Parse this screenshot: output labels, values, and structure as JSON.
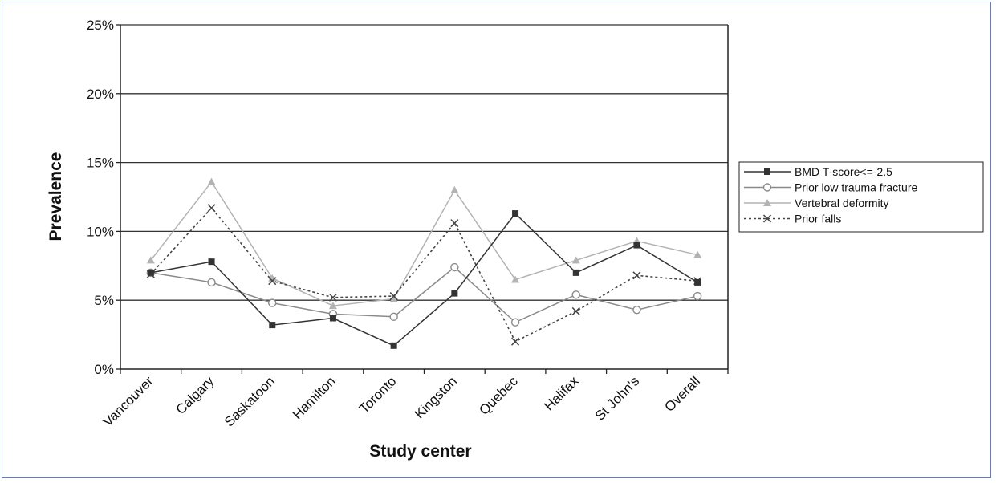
{
  "chart_data": {
    "type": "line",
    "title": "",
    "xlabel": "Study center",
    "ylabel": "Prevalence",
    "ylim": [
      0,
      25
    ],
    "yticks": [
      0,
      5,
      10,
      15,
      20,
      25
    ],
    "ytick_labels": [
      "0%",
      "5%",
      "10%",
      "15%",
      "20%",
      "25%"
    ],
    "grid": "horizontal",
    "legend_position": "right",
    "categories": [
      "Vancouver",
      "Calgary",
      "Saskatoon",
      "Hamilton",
      "Toronto",
      "Kingston",
      "Quebec",
      "Halifax",
      "St John's",
      "Overall"
    ],
    "series": [
      {
        "name": "BMD T-score<=-2.5",
        "marker": "square",
        "dash": "solid",
        "color": "#333333",
        "values": [
          7.0,
          7.8,
          3.2,
          3.7,
          1.7,
          5.5,
          11.3,
          7.0,
          9.0,
          6.3
        ]
      },
      {
        "name": "Prior low trauma fracture",
        "marker": "circle",
        "dash": "solid",
        "color": "#8a8a8a",
        "values": [
          7.0,
          6.3,
          4.8,
          4.0,
          3.8,
          7.4,
          3.4,
          5.4,
          4.3,
          5.3
        ]
      },
      {
        "name": "Vertebral deformity",
        "marker": "triangle",
        "dash": "solid",
        "color": "#b3b3b3",
        "values": [
          7.9,
          13.6,
          6.6,
          4.6,
          5.1,
          13.0,
          6.5,
          7.9,
          9.3,
          8.3
        ]
      },
      {
        "name": "Prior falls",
        "marker": "x",
        "dash": "dotted",
        "color": "#444444",
        "values": [
          6.9,
          11.7,
          6.4,
          5.2,
          5.3,
          10.6,
          2.0,
          4.2,
          6.8,
          6.4
        ]
      }
    ]
  }
}
